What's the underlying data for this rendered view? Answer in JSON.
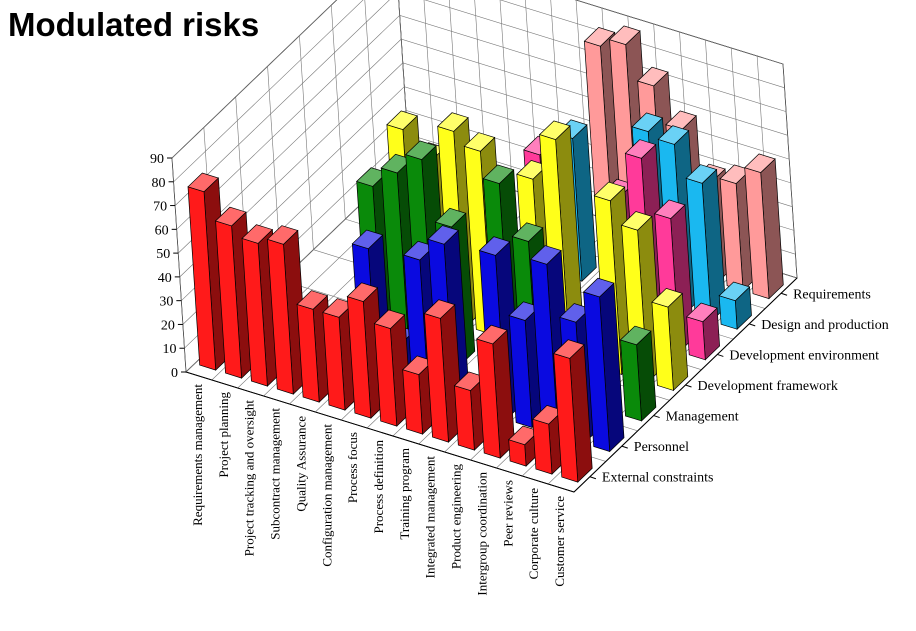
{
  "chart_data": {
    "type": "bar3d",
    "title": "Modulated risks",
    "zlim": [
      0,
      90
    ],
    "zticks": [
      0,
      10,
      20,
      30,
      40,
      50,
      60,
      70,
      80,
      90
    ],
    "categories": [
      "Requirements management",
      "Project planning",
      "Project tracking and oversight",
      "Subcontract management",
      "Quality Assurance",
      "Configuration management",
      "Process focus",
      "Process definition",
      "Training program",
      "Integrated management",
      "Product engineering",
      "Intergroup coordination",
      "Peer reviews",
      "Corporate culture",
      "Customer service"
    ],
    "series": [
      {
        "name": "External constraints",
        "color": "#ff1a1a",
        "values": [
          75,
          64,
          60,
          63,
          39,
          39,
          49,
          41,
          25,
          52,
          25,
          48,
          9,
          21,
          52
        ]
      },
      {
        "name": "Personnel",
        "color": "#0a0ae0",
        "values": [
          0,
          0,
          0,
          0,
          0,
          55,
          18,
          57,
          67,
          0,
          69,
          45,
          72,
          51,
          65
        ]
      },
      {
        "name": "Management",
        "color": "#0a8a0a",
        "values": [
          0,
          0,
          0,
          0,
          65,
          74,
          83,
          58,
          0,
          83,
          62,
          0,
          0,
          0,
          32
        ]
      },
      {
        "name": "Development framework",
        "color": "#ffff1a",
        "values": [
          0,
          0,
          0,
          0,
          76,
          66,
          82,
          77,
          0,
          72,
          92,
          0,
          73,
          64,
          35
        ]
      },
      {
        "name": "Development environment",
        "color": "#ff3a9a",
        "values": [
          0,
          0,
          0,
          0,
          0,
          0,
          0,
          0,
          66,
          0,
          0,
          58,
          78,
          56,
          16
        ]
      },
      {
        "name": "Design and production",
        "color": "#1ab8f0",
        "values": [
          0,
          0,
          0,
          0,
          0,
          0,
          0,
          0,
          60,
          0,
          0,
          73,
          71,
          58,
          12
        ]
      },
      {
        "name": "Requirements",
        "color": "#ff9a9a",
        "values": [
          0,
          0,
          0,
          0,
          0,
          0,
          0,
          0,
          86,
          90,
          76,
          61,
          42,
          45,
          53
        ]
      }
    ],
    "grid": true
  }
}
